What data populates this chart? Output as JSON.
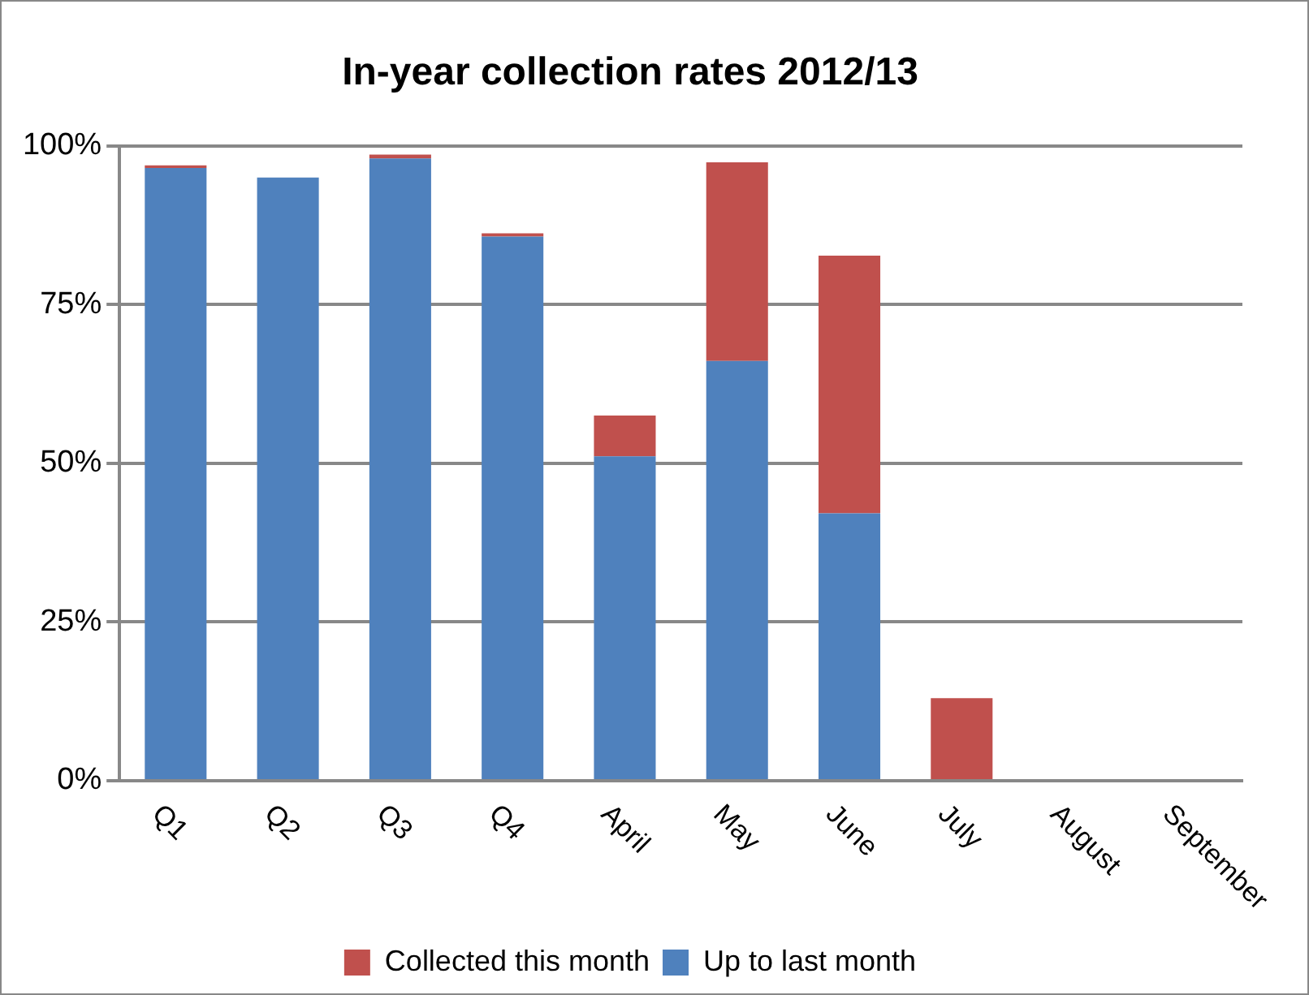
{
  "chart_data": {
    "type": "bar",
    "title": "In-year collection rates 2012/13",
    "categories": [
      "Q1",
      "Q2",
      "Q3",
      "Q4",
      "April",
      "May",
      "June",
      "July",
      "August",
      "September"
    ],
    "series": [
      {
        "name": "Up to last month",
        "color": "#4f81bd",
        "values": [
          96.5,
          95,
          98,
          85.7,
          51.1,
          66.1,
          42.1,
          0,
          null,
          null
        ]
      },
      {
        "name": "Collected this month",
        "color": "#c0504d",
        "values": [
          0.4,
          0,
          0.6,
          0.5,
          6.4,
          31.3,
          40.6,
          13,
          null,
          null
        ]
      }
    ],
    "stacked": true,
    "ylim": [
      0,
      100
    ],
    "yticks": [
      {
        "value": 0,
        "label": "0%"
      },
      {
        "value": 25,
        "label": "25%"
      },
      {
        "value": 50,
        "label": "50%"
      },
      {
        "value": 75,
        "label": "75%"
      },
      {
        "value": 100,
        "label": "100%"
      }
    ],
    "grid": "y",
    "legend": "bottom"
  }
}
